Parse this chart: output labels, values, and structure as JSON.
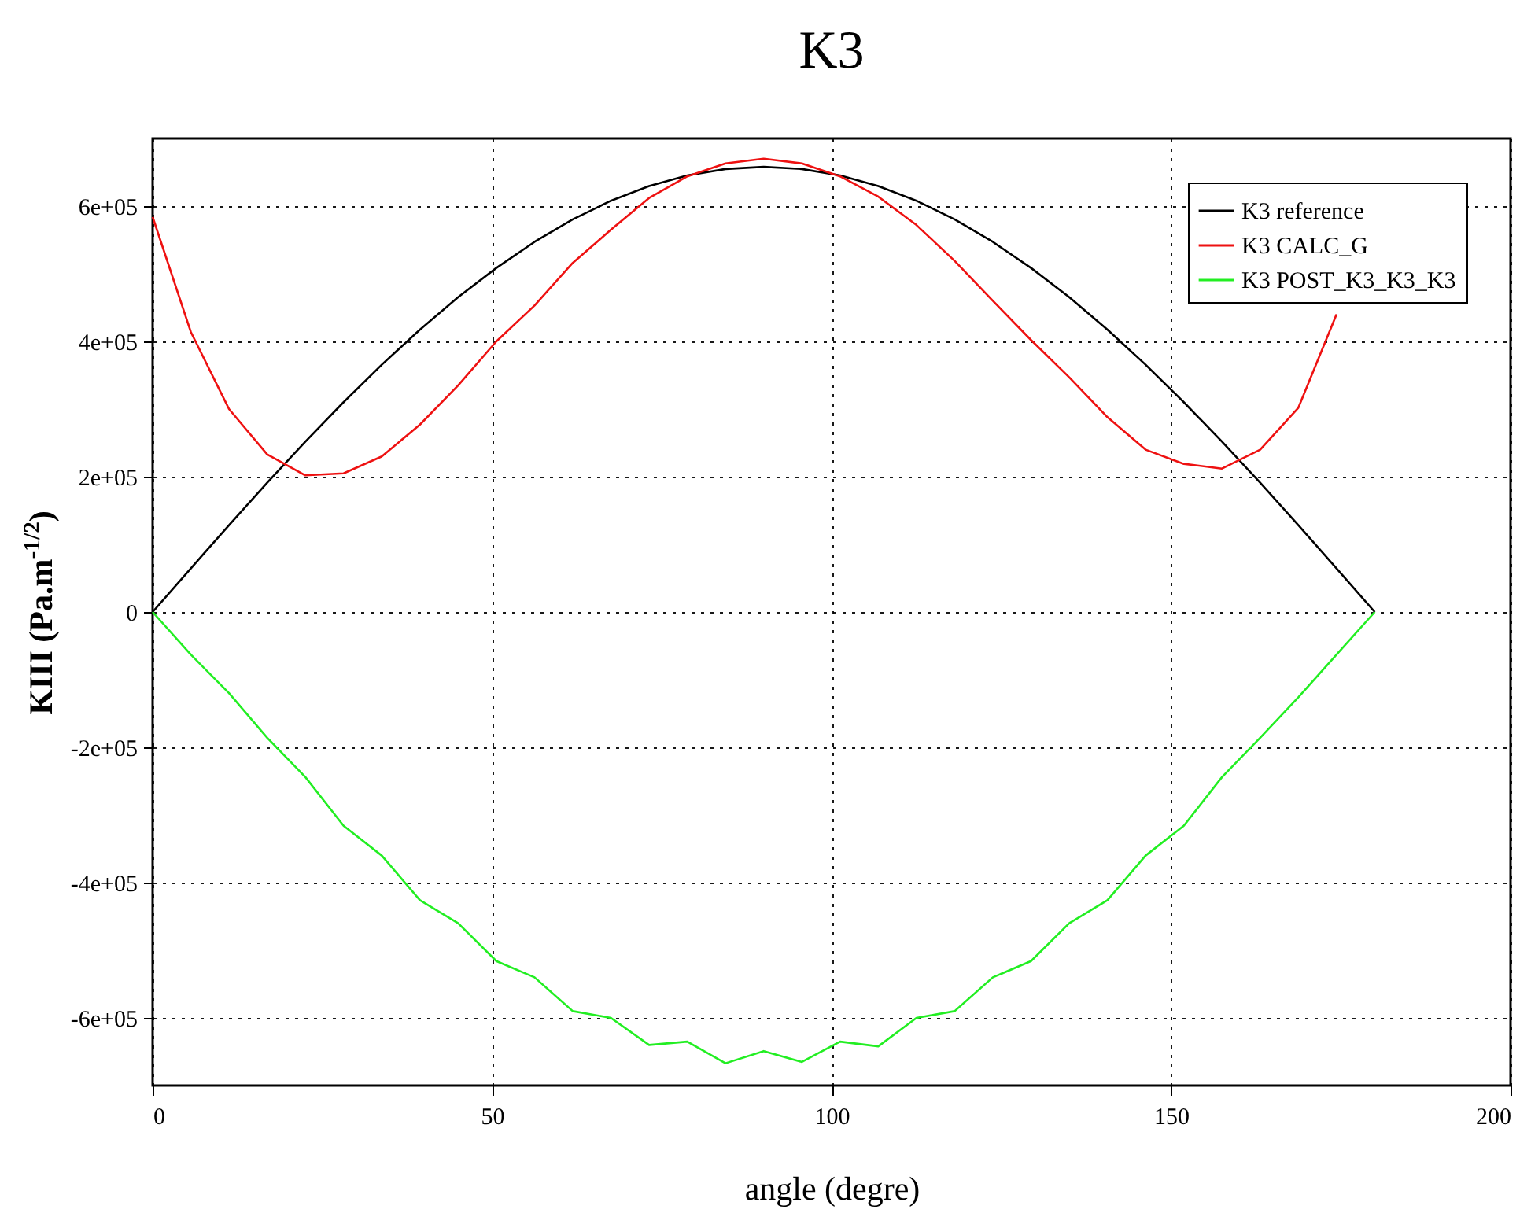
{
  "chart_data": {
    "type": "line",
    "title": "K3",
    "xlabel": "angle (degre)",
    "ylabel": "KIII (Pa.m$^{-1/2}$)",
    "x": [
      0,
      5.625,
      11.25,
      16.875,
      22.5,
      28.125,
      33.75,
      39.375,
      45,
      50.625,
      56.25,
      61.875,
      67.5,
      73.125,
      78.75,
      84.375,
      90,
      95.625,
      101.25,
      106.875,
      112.5,
      118.125,
      123.75,
      129.375,
      135,
      140.625,
      146.25,
      151.875,
      157.5,
      163.125,
      168.75,
      174.375,
      180
    ],
    "series": [
      {
        "name": "K3 reference",
        "color": "#000000",
        "values": [
          0,
          64500,
          128400,
          191000,
          251800,
          310200,
          365600,
          417400,
          465300,
          508600,
          547100,
          580300,
          607900,
          629600,
          645400,
          654800,
          658000,
          654800,
          645400,
          629600,
          607900,
          580300,
          547100,
          508600,
          465300,
          417400,
          365600,
          310200,
          251800,
          191000,
          128400,
          64500,
          0
        ]
      },
      {
        "name": "K3 CALC_G",
        "color": "#ee1111",
        "values": [
          584000,
          414000,
          300000,
          233000,
          202000,
          205000,
          230000,
          277000,
          335000,
          400000,
          453000,
          516000,
          565000,
          612000,
          644000,
          663000,
          670000,
          663000,
          644000,
          614000,
          572000,
          519000,
          460000,
          402000,
          347000,
          288000,
          240000,
          219000,
          212000,
          240000,
          302000,
          440000,
          null
        ]
      },
      {
        "name": "K3 POST_K3_K3_K3",
        "color": "#22ee22",
        "values": [
          0,
          -63000,
          -120000,
          -186000,
          -244000,
          -316000,
          -360000,
          -426000,
          -460000,
          -516000,
          -540000,
          -590000,
          -600000,
          -640000,
          -635000,
          -667000,
          -649000,
          -665000,
          -635000,
          -642000,
          -600000,
          -590000,
          -540000,
          -516000,
          -460000,
          -426000,
          -360000,
          -316000,
          -244000,
          -186000,
          -126000,
          -63000,
          0
        ]
      }
    ],
    "xlim": [
      0,
      200
    ],
    "xticks": [
      0,
      50,
      100,
      150,
      200
    ],
    "ylim": [
      -700000,
      700000
    ],
    "yticks": [
      {
        "value": -600000,
        "label": "-6e+05"
      },
      {
        "value": -400000,
        "label": "-4e+05"
      },
      {
        "value": -200000,
        "label": "-2e+05"
      },
      {
        "value": 0,
        "label": "0"
      },
      {
        "value": 200000,
        "label": "2e+05"
      },
      {
        "value": 400000,
        "label": "4e+05"
      },
      {
        "value": 600000,
        "label": "6e+05"
      }
    ],
    "grid": true,
    "legend": "top right",
    "marker": "none",
    "line_style": "solid"
  }
}
